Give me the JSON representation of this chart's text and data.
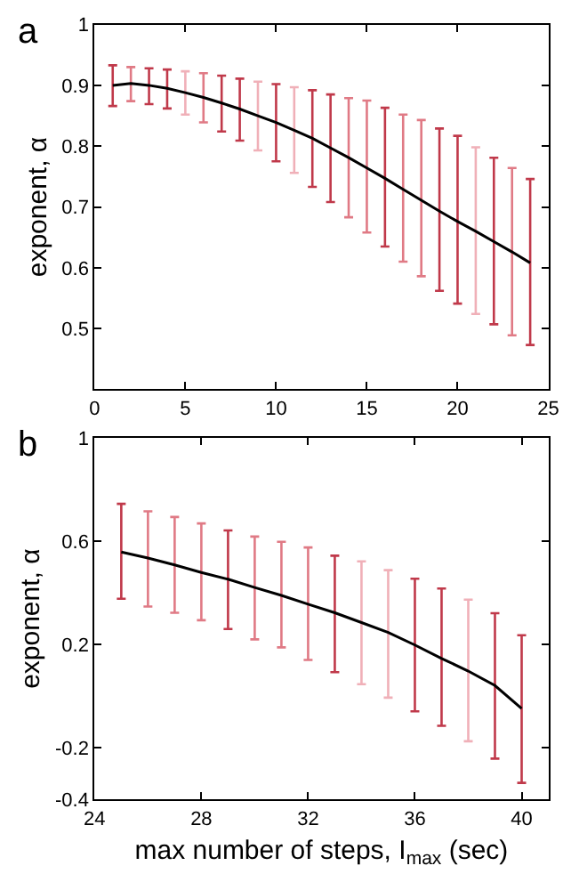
{
  "chart_data": [
    {
      "type": "line",
      "title": "a",
      "ylabel": "exponent, α",
      "marker": "none",
      "grid": false,
      "x": [
        1,
        2,
        3,
        4,
        5,
        6,
        7,
        8,
        9,
        10,
        11,
        12,
        13,
        14,
        15,
        16,
        17,
        18,
        19,
        20,
        21,
        22,
        23,
        24
      ],
      "series": [
        {
          "color": "#000000",
          "colors": [
            "#c0394a",
            "#e07a85",
            "#c0394a",
            "#c0394a",
            "#f0b0b8",
            "#e07a85",
            "#c0394a",
            "#c0394a",
            "#f0b0b8",
            "#c0394a",
            "#f0b0b8",
            "#c0394a",
            "#c0394a",
            "#e07a85",
            "#e07a85",
            "#c0394a",
            "#e07a85",
            "#e07a85",
            "#c0394a",
            "#c0394a",
            "#f0b0b8",
            "#c0394a",
            "#e07a85",
            "#c0394a"
          ],
          "values": [
            0.9,
            0.903,
            0.9,
            0.895,
            0.888,
            0.88,
            0.871,
            0.861,
            0.85,
            0.839,
            0.826,
            0.813,
            0.797,
            0.781,
            0.764,
            0.747,
            0.729,
            0.711,
            0.693,
            0.676,
            0.66,
            0.643,
            0.626,
            0.608
          ],
          "errors": [
            [
              0.866,
              0.933
            ],
            [
              0.874,
              0.93
            ],
            [
              0.869,
              0.928
            ],
            [
              0.862,
              0.926
            ],
            [
              0.852,
              0.923
            ],
            [
              0.839,
              0.92
            ],
            [
              0.824,
              0.916
            ],
            [
              0.809,
              0.911
            ],
            [
              0.793,
              0.906
            ],
            [
              0.775,
              0.902
            ],
            [
              0.756,
              0.897
            ],
            [
              0.733,
              0.892
            ],
            [
              0.708,
              0.885
            ],
            [
              0.683,
              0.879
            ],
            [
              0.658,
              0.875
            ],
            [
              0.635,
              0.863
            ],
            [
              0.61,
              0.852
            ],
            [
              0.586,
              0.843
            ],
            [
              0.562,
              0.829
            ],
            [
              0.541,
              0.817
            ],
            [
              0.524,
              0.798
            ],
            [
              0.507,
              0.781
            ],
            [
              0.489,
              0.764
            ],
            [
              0.473,
              0.746
            ]
          ]
        }
      ],
      "xlim": [
        0,
        25
      ],
      "ylim": [
        0.4,
        1
      ],
      "xticks": [
        0,
        5,
        10,
        15,
        20,
        25
      ],
      "yticks": [
        0.5,
        0.6,
        0.7,
        0.8,
        0.9,
        1
      ]
    },
    {
      "type": "line",
      "title": "b",
      "xlabel": "max number of steps, I$_{max}$ (sec)",
      "ylabel": "exponent, α",
      "marker": "none",
      "grid": false,
      "x": [
        25,
        26,
        27,
        28,
        29,
        30,
        31,
        32,
        33,
        34,
        35,
        36,
        37,
        38,
        39,
        40
      ],
      "series": [
        {
          "color": "#000000",
          "colors": [
            "#c0394a",
            "#e07a85",
            "#e07a85",
            "#e07a85",
            "#c0394a",
            "#e07a85",
            "#e07a85",
            "#e07a85",
            "#c0394a",
            "#f0b0b8",
            "#f0b0b8",
            "#c0394a",
            "#c0394a",
            "#f0b0b8",
            "#c0394a",
            "#c0394a"
          ],
          "values": [
            0.558,
            0.535,
            0.508,
            0.479,
            0.453,
            0.421,
            0.39,
            0.356,
            0.323,
            0.285,
            0.247,
            0.198,
            0.146,
            0.097,
            0.041,
            -0.048
          ],
          "errors": [
            [
              0.377,
              0.745
            ],
            [
              0.347,
              0.716
            ],
            [
              0.323,
              0.694
            ],
            [
              0.294,
              0.669
            ],
            [
              0.26,
              0.642
            ],
            [
              0.22,
              0.618
            ],
            [
              0.189,
              0.598
            ],
            [
              0.14,
              0.576
            ],
            [
              0.093,
              0.544
            ],
            [
              0.046,
              0.522
            ],
            [
              -0.006,
              0.488
            ],
            [
              -0.059,
              0.455
            ],
            [
              -0.115,
              0.417
            ],
            [
              -0.175,
              0.374
            ],
            [
              -0.242,
              0.321
            ],
            [
              -0.336,
              0.236
            ]
          ]
        }
      ],
      "xlim": [
        24,
        41
      ],
      "ylim": [
        -0.4,
        1
      ],
      "xticks": [
        24,
        28,
        32,
        36,
        40
      ],
      "yticks": [
        -0.4,
        -0.2,
        0.2,
        0.6,
        1
      ]
    }
  ]
}
